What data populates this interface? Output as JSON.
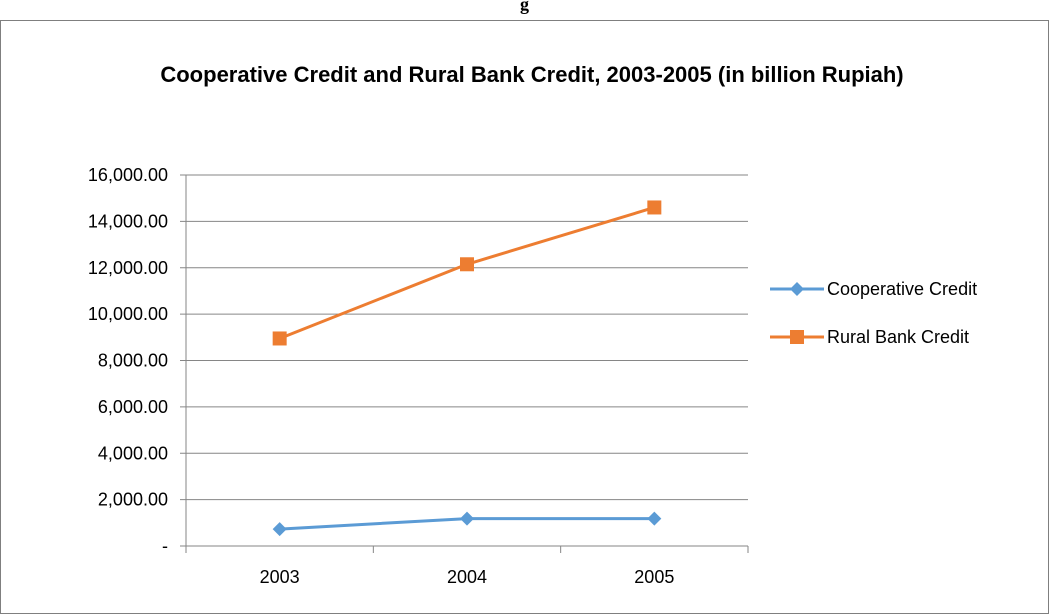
{
  "chart_data": {
    "type": "line",
    "title": "Cooperative Credit and Rural Bank Credit, 2003-2005 (in billion Rupiah)",
    "xlabel": "",
    "ylabel": "",
    "categories": [
      "2003",
      "2004",
      "2005"
    ],
    "ylim": [
      0,
      16000
    ],
    "yticks": [
      0,
      2000,
      4000,
      6000,
      8000,
      10000,
      12000,
      14000,
      16000
    ],
    "ytick_labels": [
      "-",
      "2,000.00",
      "4,000.00",
      "6,000.00",
      "8,000.00",
      "10,000.00",
      "12,000.00",
      "14,000.00",
      "16,000.00"
    ],
    "grid": true,
    "legend_position": "right",
    "series": [
      {
        "name": "Cooperative Credit",
        "values": [
          730,
          1180,
          1180
        ],
        "color": "#5B9BD5",
        "marker": "diamond"
      },
      {
        "name": "Rural Bank Credit",
        "values": [
          8950,
          12150,
          14600
        ],
        "color": "#ED7D31",
        "marker": "square"
      }
    ]
  },
  "top_fragment": "g"
}
